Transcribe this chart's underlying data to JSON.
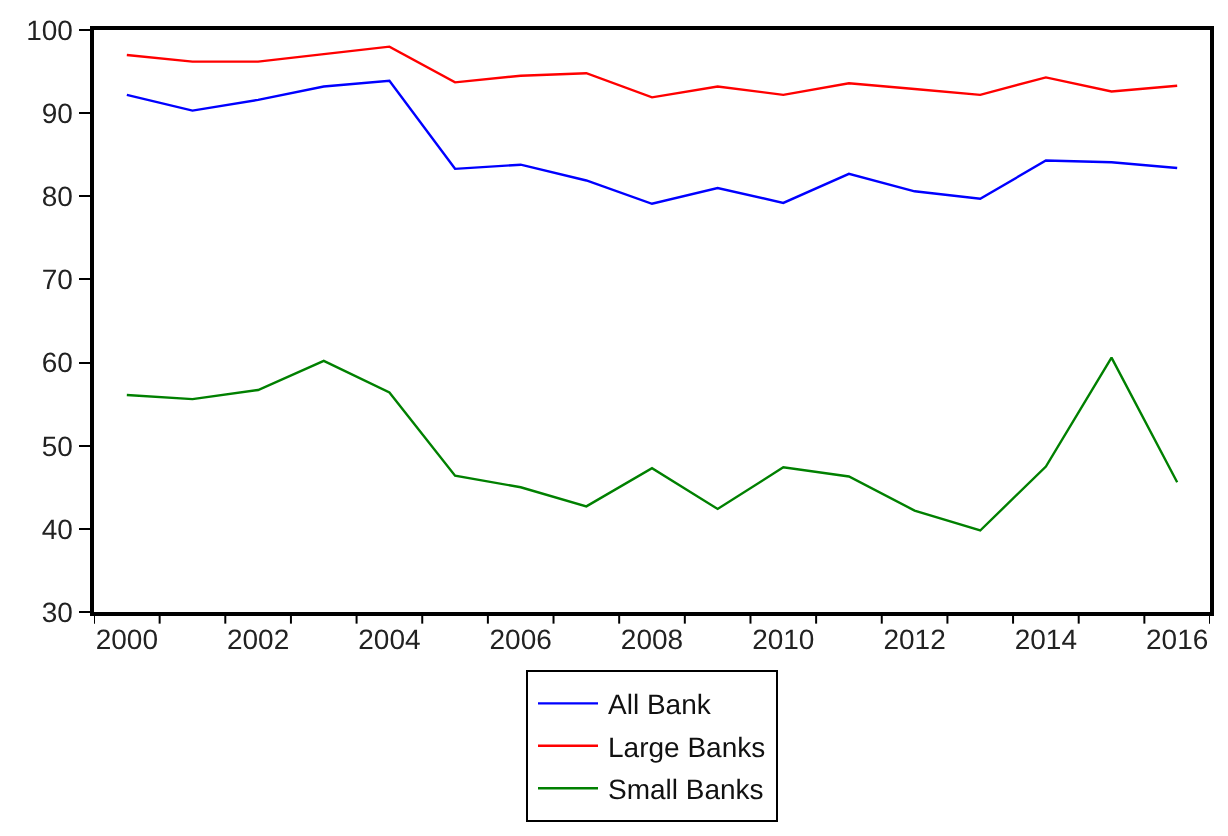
{
  "chart_data": {
    "type": "line",
    "x": [
      2000,
      2001,
      2002,
      2003,
      2004,
      2005,
      2006,
      2007,
      2008,
      2009,
      2010,
      2011,
      2012,
      2013,
      2014,
      2015,
      2016
    ],
    "series": [
      {
        "name": "All Bank",
        "color": "#0000ff",
        "values": [
          92.2,
          90.3,
          91.6,
          93.2,
          93.9,
          83.3,
          83.8,
          81.9,
          79.1,
          81.0,
          79.2,
          82.7,
          80.6,
          79.7,
          84.3,
          84.1,
          83.4
        ]
      },
      {
        "name": "Large Banks",
        "color": "#ff0000",
        "values": [
          97.0,
          96.2,
          96.2,
          97.1,
          98.0,
          93.7,
          94.5,
          94.8,
          91.9,
          93.2,
          92.2,
          93.6,
          92.9,
          92.2,
          94.3,
          92.6,
          93.3
        ]
      },
      {
        "name": "Small Banks",
        "color": "#008000",
        "values": [
          56.1,
          55.6,
          56.7,
          60.2,
          56.4,
          46.4,
          45.0,
          42.7,
          47.3,
          42.4,
          47.4,
          46.3,
          42.2,
          39.8,
          47.5,
          60.6,
          45.6
        ]
      }
    ],
    "xlim": [
      1999.5,
      2016.5
    ],
    "xticks": [
      {
        "value": 1999.5,
        "label": null
      },
      2000,
      {
        "value": 2000.5,
        "label": null
      },
      {
        "value": 2001.5,
        "label": null
      },
      2002,
      {
        "value": 2002.5,
        "label": null
      },
      {
        "value": 2003.5,
        "label": null
      },
      2004,
      {
        "value": 2004.5,
        "label": null
      },
      {
        "value": 2005.5,
        "label": null
      },
      2006,
      {
        "value": 2006.5,
        "label": null
      },
      {
        "value": 2007.5,
        "label": null
      },
      2008,
      {
        "value": 2008.5,
        "label": null
      },
      {
        "value": 2009.5,
        "label": null
      },
      2010,
      {
        "value": 2010.5,
        "label": null
      },
      {
        "value": 2011.5,
        "label": null
      },
      2012,
      {
        "value": 2012.5,
        "label": null
      },
      {
        "value": 2013.5,
        "label": null
      },
      2014,
      {
        "value": 2014.5,
        "label": null
      },
      {
        "value": 2015.5,
        "label": null
      },
      2016,
      {
        "value": 2016.5,
        "label": null
      }
    ],
    "ylim": [
      30,
      100
    ],
    "yticks": [
      30,
      40,
      50,
      60,
      70,
      80,
      90,
      100
    ],
    "legend": "bottom",
    "marker": "none",
    "line_style": "solid"
  }
}
